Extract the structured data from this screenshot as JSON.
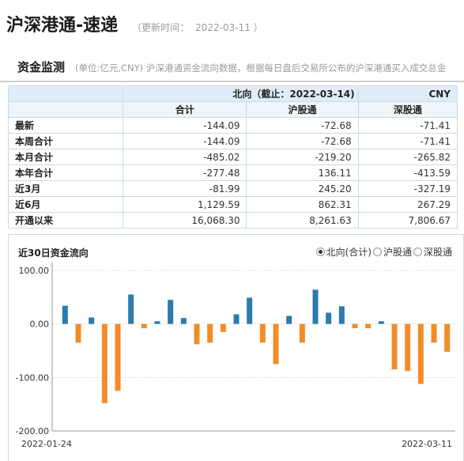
{
  "header": {
    "title": "沪深港通-速递",
    "update_label": "（更新时间：",
    "update_date": "2022-03-11",
    "update_close": "）"
  },
  "section": {
    "title": "资金监测",
    "desc": "(单位:亿元,CNY)  沪深港通资金流向数据，根据每日盘后交易所公布的沪深港通买入成交总金"
  },
  "table": {
    "direction": "北向（截止：2022-03-14)",
    "currency": "CNY",
    "columns": [
      "合计",
      "沪股通",
      "深股通"
    ],
    "rows": [
      {
        "label": "最新",
        "values": [
          "-144.09",
          "-72.68",
          "-71.41"
        ]
      },
      {
        "label": "本周合计",
        "values": [
          "-144.09",
          "-72.68",
          "-71.41"
        ]
      },
      {
        "label": "本月合计",
        "values": [
          "-485.02",
          "-219.20",
          "-265.82"
        ]
      },
      {
        "label": "本年合计",
        "values": [
          "-277.48",
          "136.11",
          "-413.59"
        ]
      },
      {
        "label": "近3月",
        "values": [
          "-81.99",
          "245.20",
          "-327.19"
        ]
      },
      {
        "label": "近6月",
        "values": [
          "1,129.59",
          "862.31",
          "267.29"
        ]
      },
      {
        "label": "开通以来",
        "values": [
          "16,068.30",
          "8,261.63",
          "7,806.67"
        ]
      }
    ]
  },
  "chart_panel": {
    "title": "近30日资金流向",
    "options": [
      {
        "label": "北向(合计)",
        "selected": true
      },
      {
        "label": "沪股通",
        "selected": false
      },
      {
        "label": "深股通",
        "selected": false
      }
    ]
  },
  "chart_data": {
    "type": "bar",
    "ylim": [
      -200,
      100
    ],
    "yticks": [
      "100.00",
      "0.00",
      "-100.00",
      "-200.00"
    ],
    "ytick_values": [
      100,
      0,
      -100,
      -200
    ],
    "x_start_label": "2022-01-24",
    "x_end_label": "2022-03-11",
    "positive_color": "#2b7bab",
    "negative_color": "#f28c28",
    "values": [
      34,
      -35,
      12,
      -148,
      -125,
      55,
      -8,
      5,
      45,
      11,
      -38,
      -35,
      -15,
      18,
      49,
      -35,
      -75,
      15,
      -35,
      64,
      21,
      33,
      -8,
      -8,
      5,
      -85,
      -88,
      -112,
      -35,
      -52
    ]
  }
}
